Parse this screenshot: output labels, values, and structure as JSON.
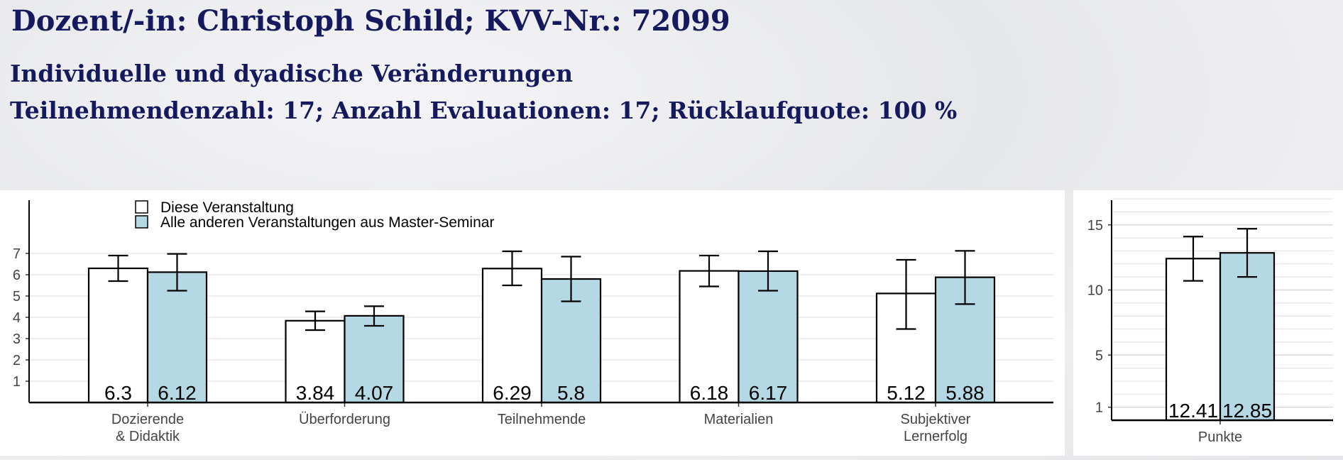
{
  "header": {
    "title": "Dozent/-in: Christoph Schild; KVV-Nr.: 72099",
    "subtitle": "Individuelle und dyadische Veränderungen",
    "stats": "Teilnehmendenzahl: 17; Anzahl Evaluationen: 17; Rücklaufquote: 100 %"
  },
  "colors": {
    "heading": "#151a5e",
    "this_course": "#ffffff",
    "other_courses": "#b4d9e4"
  },
  "legend": {
    "items": [
      "Diese Veranstaltung",
      "Alle anderen Veranstaltungen aus Master-Seminar"
    ]
  },
  "chart_data": [
    {
      "type": "bar",
      "categories": [
        [
          "Dozierende",
          "& Didaktik"
        ],
        [
          "Überforderung"
        ],
        [
          "Teilnehmende"
        ],
        [
          "Materialien"
        ],
        [
          "Subjektiver",
          "Lernerfolg"
        ]
      ],
      "yticks": [
        1,
        2,
        3,
        4,
        5,
        6,
        7
      ],
      "ylim": [
        0,
        9.5
      ],
      "grid": true,
      "legend_position": "top-left",
      "series": [
        {
          "name": "Diese Veranstaltung",
          "values": [
            6.3,
            3.84,
            6.29,
            6.18,
            5.12
          ],
          "labels": [
            "6.3",
            "3.84",
            "6.29",
            "6.18",
            "5.12"
          ],
          "err_low": [
            5.7,
            3.4,
            5.5,
            5.45,
            3.45
          ],
          "err_high": [
            6.9,
            4.28,
            7.1,
            6.9,
            6.7
          ]
        },
        {
          "name": "Alle anderen Veranstaltungen aus Master-Seminar",
          "values": [
            6.12,
            4.07,
            5.8,
            6.17,
            5.88
          ],
          "labels": [
            "6.12",
            "4.07",
            "5.8",
            "6.17",
            "5.88"
          ],
          "err_low": [
            5.25,
            3.6,
            4.75,
            5.25,
            4.62
          ],
          "err_high": [
            6.98,
            4.52,
            6.85,
            7.1,
            7.12
          ]
        }
      ]
    },
    {
      "type": "bar",
      "categories": [
        [
          "Punkte"
        ]
      ],
      "yticks": [
        1,
        5,
        10,
        15
      ],
      "ylim": [
        0,
        17.5
      ],
      "grid": true,
      "series": [
        {
          "name": "Diese Veranstaltung",
          "values": [
            12.41
          ],
          "labels": [
            "12.41"
          ],
          "err_low": [
            10.7
          ],
          "err_high": [
            14.1
          ]
        },
        {
          "name": "Alle anderen Veranstaltungen aus Master-Seminar",
          "values": [
            12.85
          ],
          "labels": [
            "12.85"
          ],
          "err_low": [
            11.0
          ],
          "err_high": [
            14.7
          ]
        }
      ]
    }
  ]
}
